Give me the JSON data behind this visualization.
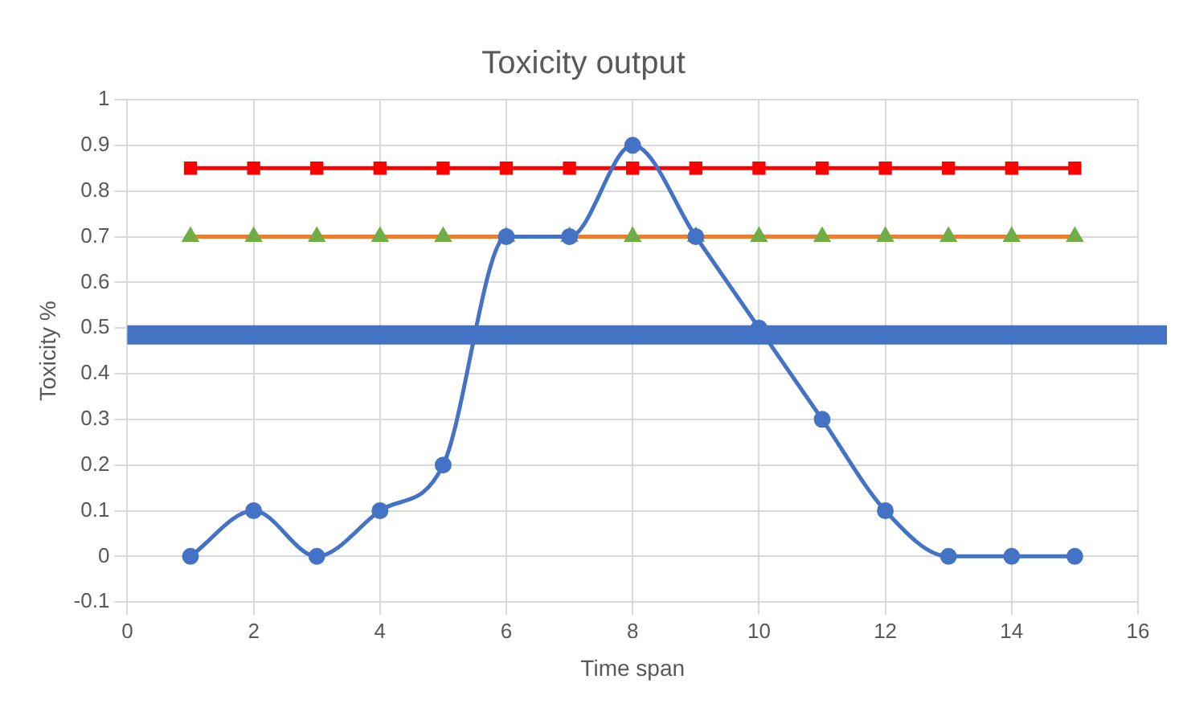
{
  "chart_data": {
    "type": "line",
    "title": "Toxicity output",
    "xlabel": "Time span",
    "ylabel": "Toxicity %",
    "xlim": [
      0,
      16
    ],
    "xticks": [
      0,
      2,
      4,
      6,
      8,
      10,
      12,
      14,
      16
    ],
    "ylim": [
      -0.1,
      1
    ],
    "yticks": [
      -0.1,
      0,
      0.1,
      0.2,
      0.3,
      0.4,
      0.5,
      0.6,
      0.7,
      0.8,
      0.9,
      1
    ],
    "grid": true,
    "legend": false,
    "x": [
      1,
      2,
      3,
      4,
      5,
      6,
      7,
      8,
      9,
      10,
      11,
      12,
      13,
      14,
      15
    ],
    "series": [
      {
        "color": "#4472c4",
        "marker": "circle",
        "values": [
          0,
          0.1,
          0,
          0.1,
          0.2,
          0.7,
          0.7,
          0.9,
          0.7,
          0.5,
          0.3,
          0.1,
          0,
          0,
          0
        ]
      },
      {
        "color": "#ff0000",
        "marker": "square",
        "values": [
          0.85,
          0.85,
          0.85,
          0.85,
          0.85,
          0.85,
          0.85,
          0.85,
          0.85,
          0.85,
          0.85,
          0.85,
          0.85,
          0.85,
          0.85
        ]
      },
      {
        "color": "#ed7d31",
        "colors": [
          "#70ad47",
          "#70ad47",
          "#70ad47",
          "#70ad47",
          "#70ad47",
          "#70ad47",
          "#70ad47",
          "#70ad47",
          "#70ad47",
          "#70ad47",
          "#70ad47",
          "#70ad47",
          "#70ad47",
          "#70ad47",
          "#70ad47"
        ],
        "marker": "triangle",
        "values": [
          0.7,
          0.7,
          0.7,
          0.7,
          0.7,
          0.7,
          0.7,
          0.7,
          0.7,
          0.7,
          0.7,
          0.7,
          0.7,
          0.7,
          0.7
        ]
      }
    ],
    "ref_lines": [
      {
        "axis": "y",
        "value": 0.485,
        "color": "#4472c4"
      }
    ]
  }
}
